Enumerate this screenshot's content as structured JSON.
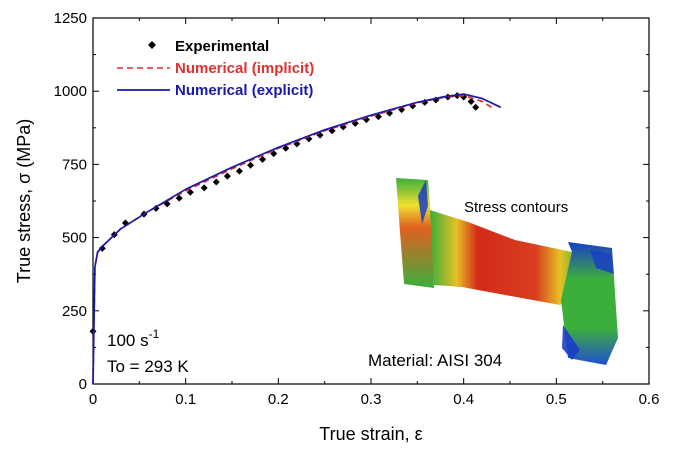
{
  "chart_data": {
    "type": "scatter",
    "xlabel": "True strain, ε",
    "ylabel": "True stress, σ (MPa)",
    "xlim": [
      0,
      0.6
    ],
    "ylim": [
      0,
      1250
    ],
    "xticks": [
      "0",
      "0.1",
      "0.2",
      "0.3",
      "0.4",
      "0.5",
      "0.6"
    ],
    "yticks": [
      "0",
      "250",
      "500",
      "750",
      "1000",
      "1250"
    ],
    "grid": false,
    "legend_position": "top-left",
    "series": [
      {
        "name": "Experimental",
        "kind": "markers",
        "color": "#000000",
        "x": [
          0.0,
          0.01,
          0.023,
          0.035,
          0.055,
          0.068,
          0.08,
          0.093,
          0.105,
          0.12,
          0.133,
          0.145,
          0.158,
          0.17,
          0.183,
          0.195,
          0.208,
          0.22,
          0.233,
          0.245,
          0.258,
          0.27,
          0.283,
          0.295,
          0.308,
          0.32,
          0.333,
          0.345,
          0.358,
          0.37,
          0.383,
          0.393,
          0.4,
          0.408,
          0.413
        ],
        "y": [
          180,
          463,
          510,
          550,
          580,
          600,
          615,
          635,
          655,
          670,
          690,
          710,
          727,
          747,
          767,
          787,
          805,
          820,
          837,
          850,
          865,
          878,
          890,
          903,
          913,
          925,
          937,
          950,
          962,
          970,
          980,
          985,
          980,
          965,
          945
        ]
      },
      {
        "name": "Numerical (implicit)",
        "kind": "dashed-line",
        "color": "#e03030",
        "x": [
          0.0,
          0.002,
          0.005,
          0.01,
          0.03,
          0.06,
          0.1,
          0.15,
          0.2,
          0.25,
          0.3,
          0.35,
          0.38,
          0.4,
          0.42,
          0.43
        ],
        "y": [
          0,
          400,
          450,
          470,
          530,
          590,
          660,
          735,
          805,
          865,
          915,
          960,
          980,
          985,
          965,
          945
        ]
      },
      {
        "name": "Numerical (explicit)",
        "kind": "solid-line",
        "color": "#1a1aaa",
        "x": [
          0.0,
          0.002,
          0.005,
          0.01,
          0.03,
          0.06,
          0.1,
          0.15,
          0.2,
          0.25,
          0.3,
          0.35,
          0.38,
          0.4,
          0.42,
          0.44
        ],
        "y": [
          0,
          400,
          450,
          470,
          530,
          590,
          665,
          740,
          808,
          868,
          918,
          962,
          982,
          990,
          975,
          945
        ]
      }
    ],
    "annotations": {
      "rate_base": "100 s",
      "rate_exp": "-1",
      "temperature": "To = 293 K",
      "material": "Material: AISI 304",
      "inset_label": "Stress contours"
    }
  },
  "colors": {
    "axis": "#000000",
    "experimental": "#000000",
    "implicit": "#e03030",
    "explicit": "#1a1aaa",
    "contour_high": "#d42a1a",
    "contour_mid": "#3cae3c",
    "contour_low": "#1a3cc8"
  }
}
